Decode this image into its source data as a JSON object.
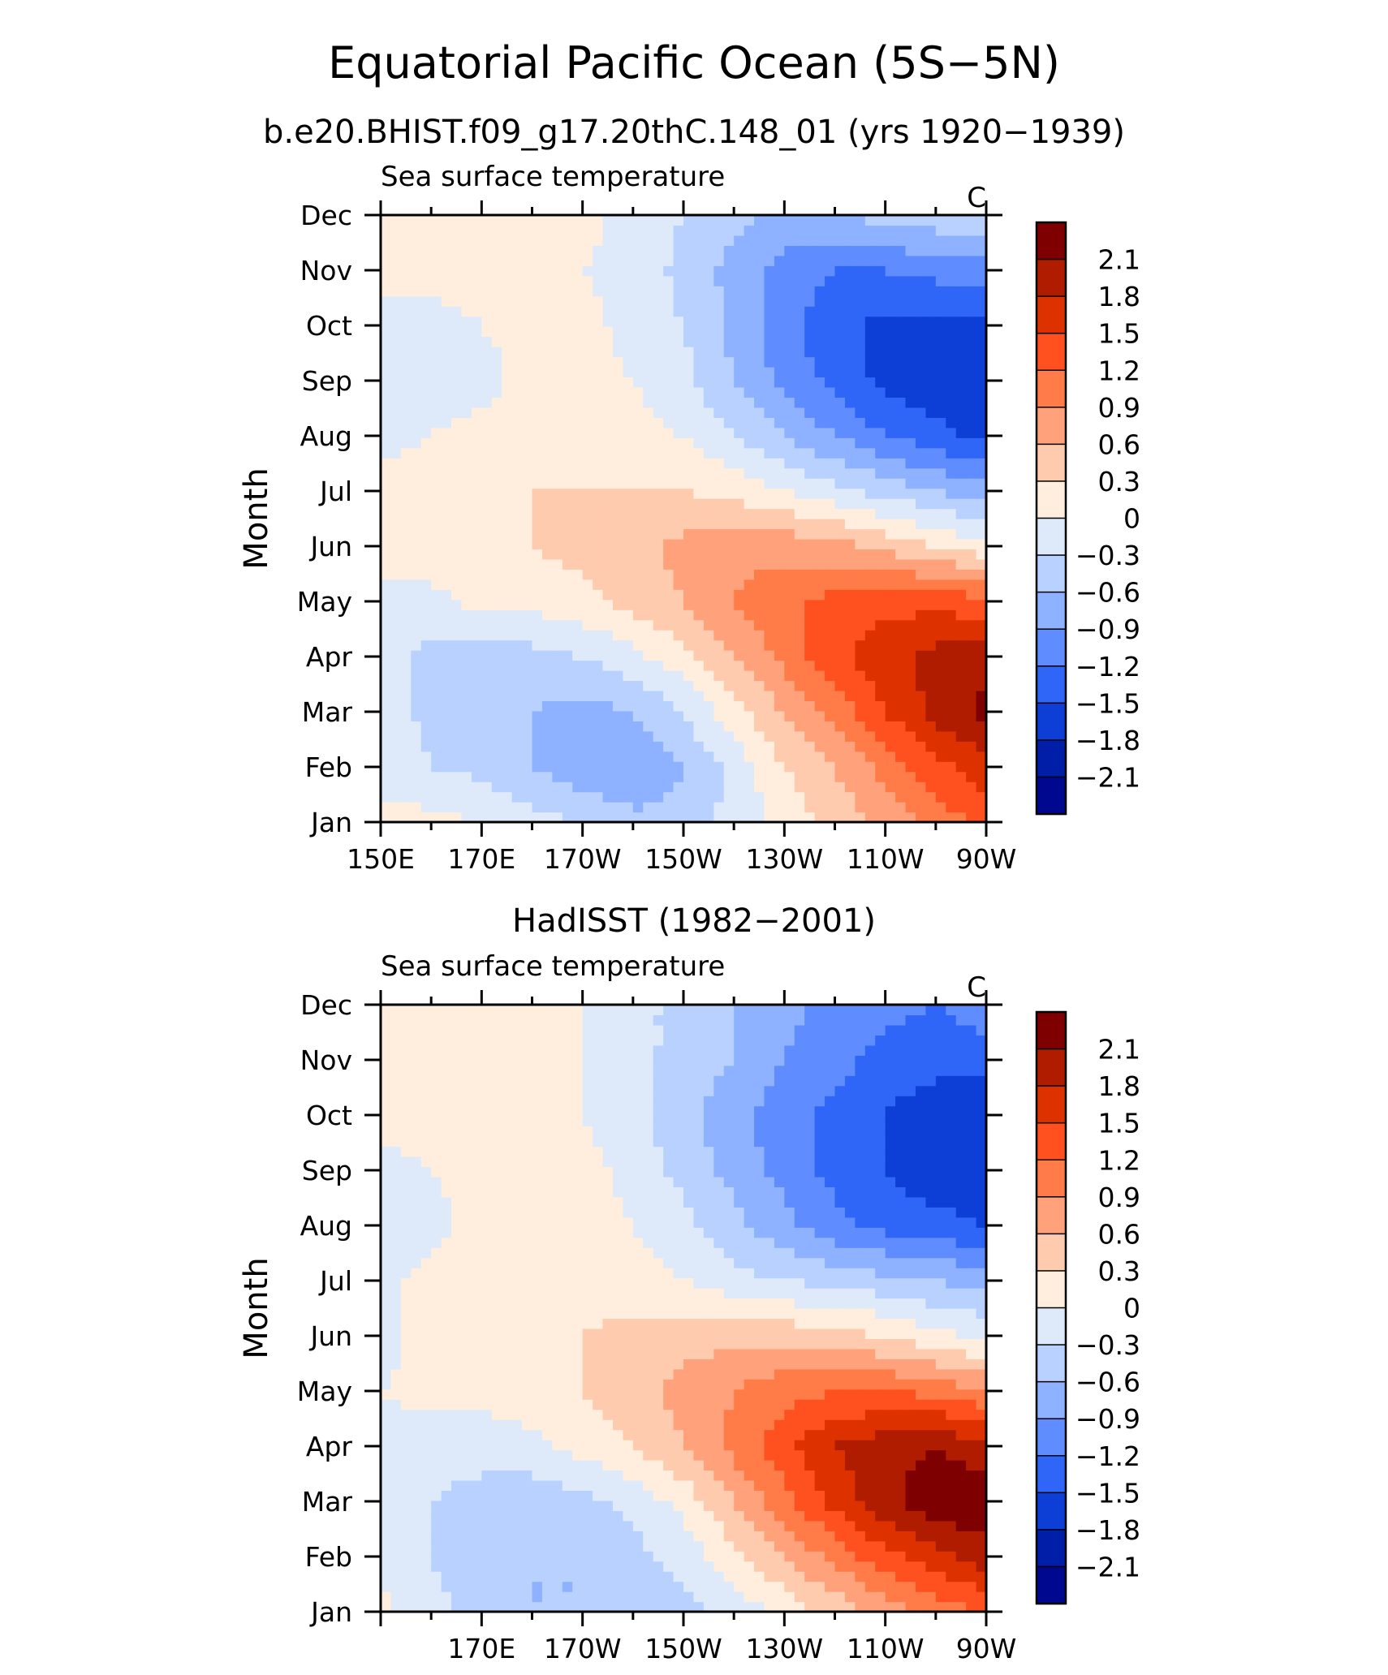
{
  "page": {
    "title": "Equatorial Pacific Ocean (5S−5N)",
    "subtitle": "b.e20.BHIST.f09_g17.20thC.148_01 (yrs 1920−1939)"
  },
  "colorbar": {
    "levels": [
      "2.1",
      "1.8",
      "1.5",
      "1.2",
      "0.9",
      "0.6",
      "0.3",
      "0",
      "−0.3",
      "−0.6",
      "−0.9",
      "−1.2",
      "−1.5",
      "−1.8",
      "−2.1"
    ],
    "colors": [
      "#7f0000",
      "#b01c00",
      "#de3100",
      "#ff5020",
      "#ff7b47",
      "#ffa27b",
      "#ffcbae",
      "#ffeedd",
      "#deeaf9",
      "#b8d1ff",
      "#8eb2ff",
      "#5f8cff",
      "#2f66f7",
      "#0d3fd7",
      "#001ea8",
      "#000890"
    ]
  },
  "chart_data": [
    {
      "type": "heatmap",
      "panel_title": "",
      "left_label": "Sea surface temperature",
      "units": "C",
      "ylabel": "Month",
      "y_ticks": [
        "Jan",
        "Feb",
        "Mar",
        "Apr",
        "May",
        "Jun",
        "Jul",
        "Aug",
        "Sep",
        "Oct",
        "Nov",
        "Dec"
      ],
      "x_ticks": [
        "150E",
        "170E",
        "170W",
        "150W",
        "130W",
        "110W",
        "90W"
      ],
      "xlim": [
        "150E",
        "90W"
      ],
      "x": [
        150,
        160,
        170,
        180,
        190,
        200,
        210,
        220,
        230,
        240,
        250,
        260,
        270
      ],
      "y": [
        "Jan",
        "Feb",
        "Mar",
        "Apr",
        "May",
        "Jun",
        "Jul",
        "Aug",
        "Sep",
        "Oct",
        "Nov",
        "Dec"
      ],
      "z": [
        [
          0.1,
          0.1,
          0.0,
          -0.2,
          -0.3,
          -0.5,
          -0.5,
          -0.2,
          0.1,
          0.4,
          0.7,
          1.0,
          1.3
        ],
        [
          -0.1,
          -0.3,
          -0.4,
          -0.6,
          -0.8,
          -0.9,
          -0.6,
          -0.2,
          0.3,
          0.6,
          1.0,
          1.4,
          1.7
        ],
        [
          -0.1,
          -0.4,
          -0.5,
          -0.6,
          -0.7,
          -0.6,
          -0.3,
          0.2,
          0.6,
          1.0,
          1.5,
          1.9,
          2.2
        ],
        [
          -0.2,
          -0.4,
          -0.5,
          -0.4,
          -0.3,
          -0.1,
          0.2,
          0.6,
          1.0,
          1.4,
          1.7,
          1.9,
          2.0
        ],
        [
          -0.1,
          -0.1,
          0.1,
          0.1,
          0.2,
          0.4,
          0.6,
          0.9,
          1.1,
          1.3,
          1.4,
          1.4,
          1.3
        ],
        [
          0.1,
          0.2,
          0.2,
          0.3,
          0.4,
          0.5,
          0.7,
          0.8,
          0.8,
          0.7,
          0.5,
          0.3,
          0.1
        ],
        [
          0.1,
          0.2,
          0.2,
          0.3,
          0.3,
          0.3,
          0.3,
          0.2,
          0.0,
          -0.2,
          -0.4,
          -0.6,
          -0.8
        ],
        [
          -0.1,
          0.0,
          0.1,
          0.2,
          0.2,
          0.1,
          0.0,
          -0.3,
          -0.6,
          -0.9,
          -1.2,
          -1.4,
          -1.6
        ],
        [
          -0.1,
          -0.1,
          -0.1,
          0.1,
          0.1,
          0.0,
          -0.2,
          -0.6,
          -1.0,
          -1.3,
          -1.6,
          -1.7,
          -1.7
        ],
        [
          -0.1,
          -0.1,
          0.0,
          0.1,
          0.1,
          -0.1,
          -0.3,
          -0.7,
          -1.1,
          -1.4,
          -1.6,
          -1.6,
          -1.6
        ],
        [
          0.1,
          0.1,
          0.1,
          0.1,
          0.0,
          -0.1,
          -0.4,
          -0.7,
          -1.0,
          -1.2,
          -1.2,
          -1.1,
          -1.0
        ],
        [
          0.1,
          0.1,
          0.3,
          0.3,
          0.1,
          -0.1,
          -0.3,
          -0.5,
          -0.7,
          -0.6,
          -0.5,
          -0.4,
          -0.4
        ]
      ]
    },
    {
      "type": "heatmap",
      "panel_title": "HadISST (1982−2001)",
      "left_label": "Sea surface temperature",
      "units": "C",
      "ylabel": "Month",
      "y_ticks": [
        "Jan",
        "Feb",
        "Mar",
        "Apr",
        "May",
        "Jun",
        "Jul",
        "Aug",
        "Sep",
        "Oct",
        "Nov",
        "Dec"
      ],
      "x_ticks": [
        "170E",
        "170W",
        "150W",
        "130W",
        "110W",
        "90W"
      ],
      "xlim": [
        "150E",
        "90W"
      ],
      "x": [
        150,
        160,
        170,
        180,
        190,
        200,
        210,
        220,
        230,
        240,
        250,
        260,
        270
      ],
      "y": [
        "Jan",
        "Feb",
        "Mar",
        "Apr",
        "May",
        "Jun",
        "Jul",
        "Aug",
        "Sep",
        "Oct",
        "Nov",
        "Dec"
      ],
      "z": [
        [
          0.1,
          -0.2,
          -0.4,
          -0.6,
          -0.6,
          -0.5,
          -0.4,
          -0.2,
          0.1,
          0.4,
          0.7,
          1.0,
          1.2
        ],
        [
          -0.1,
          -0.3,
          -0.5,
          -0.6,
          -0.6,
          -0.4,
          -0.2,
          0.2,
          0.6,
          1.0,
          1.4,
          1.7,
          2.0
        ],
        [
          -0.1,
          -0.3,
          -0.4,
          -0.5,
          -0.4,
          -0.2,
          0.1,
          0.6,
          1.1,
          1.6,
          2.0,
          2.3,
          2.3
        ],
        [
          -0.1,
          -0.2,
          -0.2,
          -0.1,
          0.1,
          0.3,
          0.6,
          1.0,
          1.4,
          1.8,
          2.0,
          2.1,
          1.9
        ],
        [
          0.0,
          0.1,
          0.1,
          0.2,
          0.3,
          0.5,
          0.7,
          0.9,
          1.1,
          1.2,
          1.2,
          1.1,
          0.9
        ],
        [
          -0.1,
          0.1,
          0.1,
          0.2,
          0.3,
          0.4,
          0.5,
          0.5,
          0.5,
          0.4,
          0.3,
          0.1,
          -0.1
        ],
        [
          -0.1,
          0.1,
          0.1,
          0.2,
          0.2,
          0.1,
          0.0,
          -0.2,
          -0.3,
          -0.4,
          -0.5,
          -0.6,
          -0.7
        ],
        [
          -0.2,
          -0.1,
          0.1,
          0.1,
          0.1,
          0.0,
          -0.2,
          -0.5,
          -0.8,
          -1.1,
          -1.3,
          -1.4,
          -1.5
        ],
        [
          -0.1,
          0.0,
          0.1,
          0.3,
          0.1,
          -0.1,
          -0.4,
          -0.7,
          -1.0,
          -1.3,
          -1.5,
          -1.7,
          -1.7
        ],
        [
          0.1,
          0.1,
          0.1,
          0.1,
          0.0,
          -0.2,
          -0.5,
          -0.8,
          -1.1,
          -1.3,
          -1.5,
          -1.7,
          -1.7
        ],
        [
          0.1,
          0.1,
          0.1,
          0.1,
          0.0,
          -0.2,
          -0.4,
          -0.6,
          -0.9,
          -1.1,
          -1.3,
          -1.4,
          -1.4
        ],
        [
          0.1,
          0.1,
          0.1,
          0.1,
          0.0,
          -0.2,
          -0.4,
          -0.6,
          -0.8,
          -1.0,
          -1.1,
          -1.2,
          -1.0
        ]
      ]
    }
  ]
}
